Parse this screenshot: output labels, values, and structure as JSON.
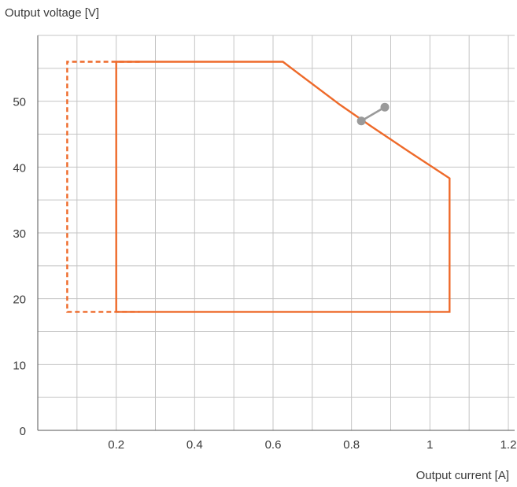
{
  "chart_data": {
    "type": "line",
    "title": "",
    "xlabel": "Output current [A]",
    "ylabel": "Output voltage [V]",
    "xlim": [
      0,
      1.2
    ],
    "ylim": [
      0,
      60
    ],
    "x_ticks": [
      {
        "value": 0.2,
        "label": "0.2"
      },
      {
        "value": 0.4,
        "label": "0.4"
      },
      {
        "value": 0.6,
        "label": "0.6"
      },
      {
        "value": 0.8,
        "label": "0.8"
      },
      {
        "value": 1.0,
        "label": "1"
      },
      {
        "value": 1.2,
        "label": "1.2"
      }
    ],
    "y_ticks": [
      {
        "value": 0,
        "label": "0"
      },
      {
        "value": 10,
        "label": "10"
      },
      {
        "value": 20,
        "label": "20"
      },
      {
        "value": 30,
        "label": "30"
      },
      {
        "value": 40,
        "label": "40"
      },
      {
        "value": 50,
        "label": "50"
      }
    ],
    "x_grid_step": 0.1,
    "y_grid_step": 5,
    "grid": true,
    "series": [
      {
        "style": "solid",
        "color": "#ee6a2a",
        "points": [
          [
            0.2,
            18
          ],
          [
            0.2,
            56
          ],
          [
            0.625,
            56
          ],
          [
            0.77,
            49.5
          ],
          [
            0.85,
            46.2
          ],
          [
            0.95,
            42.2
          ],
          [
            1.05,
            38.3
          ],
          [
            1.05,
            18
          ],
          [
            0.2,
            18
          ]
        ]
      },
      {
        "style": "dashed",
        "color": "#ee6a2a",
        "points": [
          [
            0.26,
            56
          ],
          [
            0.075,
            56
          ],
          [
            0.075,
            18
          ],
          [
            0.26,
            18
          ]
        ]
      },
      {
        "style": "marker-line",
        "color": "#9a9a9a",
        "points": [
          [
            0.825,
            47
          ],
          [
            0.885,
            49.1
          ]
        ]
      }
    ]
  }
}
